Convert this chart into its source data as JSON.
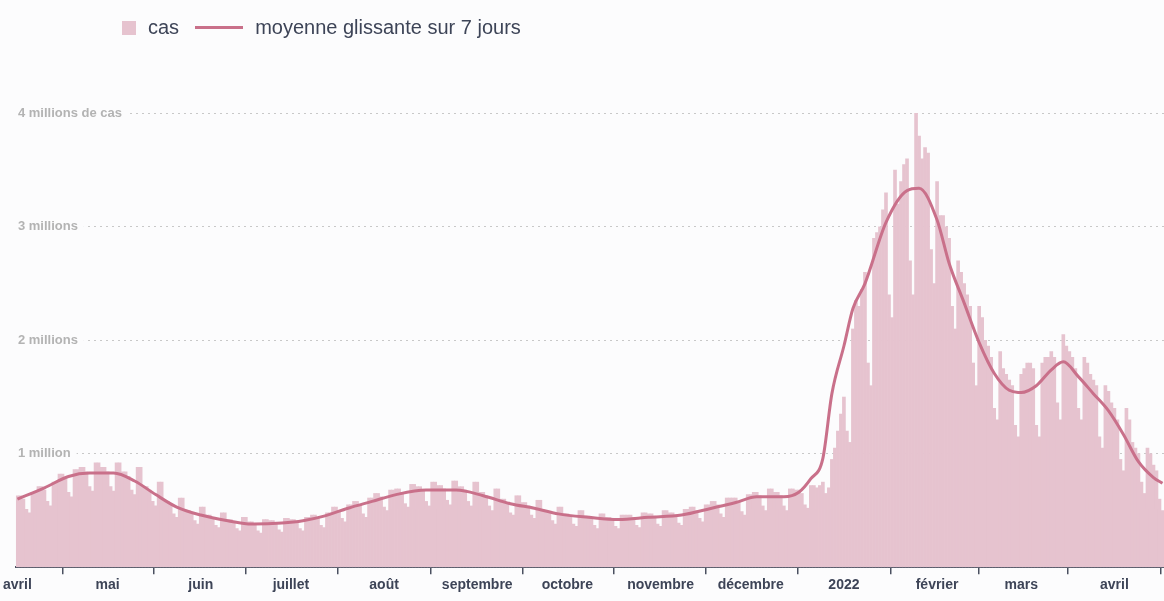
{
  "chart_data": {
    "type": "bar",
    "legend": "top left",
    "grid": "y",
    "marker": "none",
    "xlim": [
      "2021-03-31T12:00",
      "2022-04-17T12:00"
    ],
    "xticks": [
      {
        "value": "2021-04-01",
        "label": "avril"
      },
      {
        "value": "2021-05-01",
        "label": "mai"
      },
      {
        "value": "2021-06-01",
        "label": "juin"
      },
      {
        "value": "2021-07-01",
        "label": "juillet"
      },
      {
        "value": "2021-08-01",
        "label": "août"
      },
      {
        "value": "2021-09-01",
        "label": "septembre"
      },
      {
        "value": "2021-10-01",
        "label": "octobre"
      },
      {
        "value": "2021-11-01",
        "label": "novembre"
      },
      {
        "value": "2021-12-01",
        "label": "décembre"
      },
      {
        "value": "2022-01-01",
        "label": "2022"
      },
      {
        "value": "2022-02-01",
        "label": "février"
      },
      {
        "value": "2022-03-01",
        "label": "mars"
      },
      {
        "value": "2022-04-01",
        "label": "avril"
      }
    ],
    "ylim": [
      0,
      5
    ],
    "yticks": [
      {
        "value": 1,
        "label": "1 million"
      },
      {
        "value": 2,
        "label": "2 millions"
      },
      {
        "value": 3,
        "label": "3 millions"
      },
      {
        "value": 4,
        "label": "4 millions de cas"
      }
    ],
    "x": [
      "2021-04-01",
      "2021-04-02",
      "2021-04-03",
      "2021-04-04",
      "2021-04-05",
      "2021-04-06",
      "2021-04-07",
      "2021-04-08",
      "2021-04-09",
      "2021-04-10",
      "2021-04-11",
      "2021-04-12",
      "2021-04-13",
      "2021-04-14",
      "2021-04-15",
      "2021-04-16",
      "2021-04-17",
      "2021-04-18",
      "2021-04-19",
      "2021-04-20",
      "2021-04-21",
      "2021-04-22",
      "2021-04-23",
      "2021-04-24",
      "2021-04-25",
      "2021-04-26",
      "2021-04-27",
      "2021-04-28",
      "2021-04-29",
      "2021-04-30",
      "2021-05-01",
      "2021-05-02",
      "2021-05-03",
      "2021-05-04",
      "2021-05-05",
      "2021-05-06",
      "2021-05-07",
      "2021-05-08",
      "2021-05-09",
      "2021-05-10",
      "2021-05-11",
      "2021-05-12",
      "2021-05-13",
      "2021-05-14",
      "2021-05-15",
      "2021-05-16",
      "2021-05-17",
      "2021-05-18",
      "2021-05-19",
      "2021-05-20",
      "2021-05-21",
      "2021-05-22",
      "2021-05-23",
      "2021-05-24",
      "2021-05-25",
      "2021-05-26",
      "2021-05-27",
      "2021-05-28",
      "2021-05-29",
      "2021-05-30",
      "2021-05-31",
      "2021-06-01",
      "2021-06-02",
      "2021-06-03",
      "2021-06-04",
      "2021-06-05",
      "2021-06-06",
      "2021-06-07",
      "2021-06-08",
      "2021-06-09",
      "2021-06-10",
      "2021-06-11",
      "2021-06-12",
      "2021-06-13",
      "2021-06-14",
      "2021-06-15",
      "2021-06-16",
      "2021-06-17",
      "2021-06-18",
      "2021-06-19",
      "2021-06-20",
      "2021-06-21",
      "2021-06-22",
      "2021-06-23",
      "2021-06-24",
      "2021-06-25",
      "2021-06-26",
      "2021-06-27",
      "2021-06-28",
      "2021-06-29",
      "2021-06-30",
      "2021-07-01",
      "2021-07-02",
      "2021-07-03",
      "2021-07-04",
      "2021-07-05",
      "2021-07-06",
      "2021-07-07",
      "2021-07-08",
      "2021-07-09",
      "2021-07-10",
      "2021-07-11",
      "2021-07-12",
      "2021-07-13",
      "2021-07-14",
      "2021-07-15",
      "2021-07-16",
      "2021-07-17",
      "2021-07-18",
      "2021-07-19",
      "2021-07-20",
      "2021-07-21",
      "2021-07-22",
      "2021-07-23",
      "2021-07-24",
      "2021-07-25",
      "2021-07-26",
      "2021-07-27",
      "2021-07-28",
      "2021-07-29",
      "2021-07-30",
      "2021-07-31",
      "2021-08-01",
      "2021-08-02",
      "2021-08-03",
      "2021-08-04",
      "2021-08-05",
      "2021-08-06",
      "2021-08-07",
      "2021-08-08",
      "2021-08-09",
      "2021-08-10",
      "2021-08-11",
      "2021-08-12",
      "2021-08-13",
      "2021-08-14",
      "2021-08-15",
      "2021-08-16",
      "2021-08-17",
      "2021-08-18",
      "2021-08-19",
      "2021-08-20",
      "2021-08-21",
      "2021-08-22",
      "2021-08-23",
      "2021-08-24",
      "2021-08-25",
      "2021-08-26",
      "2021-08-27",
      "2021-08-28",
      "2021-08-29",
      "2021-08-30",
      "2021-08-31",
      "2021-09-01",
      "2021-09-02",
      "2021-09-03",
      "2021-09-04",
      "2021-09-05",
      "2021-09-06",
      "2021-09-07",
      "2021-09-08",
      "2021-09-09",
      "2021-09-10",
      "2021-09-11",
      "2021-09-12",
      "2021-09-13",
      "2021-09-14",
      "2021-09-15",
      "2021-09-16",
      "2021-09-17",
      "2021-09-18",
      "2021-09-19",
      "2021-09-20",
      "2021-09-21",
      "2021-09-22",
      "2021-09-23",
      "2021-09-24",
      "2021-09-25",
      "2021-09-26",
      "2021-09-27",
      "2021-09-28",
      "2021-09-29",
      "2021-09-30",
      "2021-10-01",
      "2021-10-02",
      "2021-10-03",
      "2021-10-04",
      "2021-10-05",
      "2021-10-06",
      "2021-10-07",
      "2021-10-08",
      "2021-10-09",
      "2021-10-10",
      "2021-10-11",
      "2021-10-12",
      "2021-10-13",
      "2021-10-14",
      "2021-10-15",
      "2021-10-16",
      "2021-10-17",
      "2021-10-18",
      "2021-10-19",
      "2021-10-20",
      "2021-10-21",
      "2021-10-22",
      "2021-10-23",
      "2021-10-24",
      "2021-10-25",
      "2021-10-26",
      "2021-10-27",
      "2021-10-28",
      "2021-10-29",
      "2021-10-30",
      "2021-10-31",
      "2021-11-01",
      "2021-11-02",
      "2021-11-03",
      "2021-11-04",
      "2021-11-05",
      "2021-11-06",
      "2021-11-07",
      "2021-11-08",
      "2021-11-09",
      "2021-11-10",
      "2021-11-11",
      "2021-11-12",
      "2021-11-13",
      "2021-11-14",
      "2021-11-15",
      "2021-11-16",
      "2021-11-17",
      "2021-11-18",
      "2021-11-19",
      "2021-11-20",
      "2021-11-21",
      "2021-11-22",
      "2021-11-23",
      "2021-11-24",
      "2021-11-25",
      "2021-11-26",
      "2021-11-27",
      "2021-11-28",
      "2021-11-29",
      "2021-11-30",
      "2021-12-01",
      "2021-12-02",
      "2021-12-03",
      "2021-12-04",
      "2021-12-05",
      "2021-12-06",
      "2021-12-07",
      "2021-12-08",
      "2021-12-09",
      "2021-12-10",
      "2021-12-11",
      "2021-12-12",
      "2021-12-13",
      "2021-12-14",
      "2021-12-15",
      "2021-12-16",
      "2021-12-17",
      "2021-12-18",
      "2021-12-19",
      "2021-12-20",
      "2021-12-21",
      "2021-12-22",
      "2021-12-23",
      "2021-12-24",
      "2021-12-25",
      "2021-12-26",
      "2021-12-27",
      "2021-12-28",
      "2021-12-29",
      "2021-12-30",
      "2021-12-31",
      "2022-01-01",
      "2022-01-02",
      "2022-01-03",
      "2022-01-04",
      "2022-01-05",
      "2022-01-06",
      "2022-01-07",
      "2022-01-08",
      "2022-01-09",
      "2022-01-10",
      "2022-01-11",
      "2022-01-12",
      "2022-01-13",
      "2022-01-14",
      "2022-01-15",
      "2022-01-16",
      "2022-01-17",
      "2022-01-18",
      "2022-01-19",
      "2022-01-20",
      "2022-01-21",
      "2022-01-22",
      "2022-01-23",
      "2022-01-24",
      "2022-01-25",
      "2022-01-26",
      "2022-01-27",
      "2022-01-28",
      "2022-01-29",
      "2022-01-30",
      "2022-01-31",
      "2022-02-01",
      "2022-02-02",
      "2022-02-03",
      "2022-02-04",
      "2022-02-05",
      "2022-02-06",
      "2022-02-07",
      "2022-02-08",
      "2022-02-09",
      "2022-02-10",
      "2022-02-11",
      "2022-02-12",
      "2022-02-13",
      "2022-02-14",
      "2022-02-15",
      "2022-02-16",
      "2022-02-17",
      "2022-02-18",
      "2022-02-19",
      "2022-02-20",
      "2022-02-21",
      "2022-02-22",
      "2022-02-23",
      "2022-02-24",
      "2022-02-25",
      "2022-02-26",
      "2022-02-27",
      "2022-02-28",
      "2022-03-01",
      "2022-03-02",
      "2022-03-03",
      "2022-03-04",
      "2022-03-05",
      "2022-03-06",
      "2022-03-07",
      "2022-03-08",
      "2022-03-09",
      "2022-03-10",
      "2022-03-11",
      "2022-03-12",
      "2022-03-13",
      "2022-03-14",
      "2022-03-15",
      "2022-03-16",
      "2022-03-17",
      "2022-03-18",
      "2022-03-19",
      "2022-03-20",
      "2022-03-21",
      "2022-03-22",
      "2022-03-23",
      "2022-03-24",
      "2022-03-25",
      "2022-03-26",
      "2022-03-27",
      "2022-03-28",
      "2022-03-29",
      "2022-03-30",
      "2022-03-31",
      "2022-04-01",
      "2022-04-02",
      "2022-04-03",
      "2022-04-04",
      "2022-04-05",
      "2022-04-06",
      "2022-04-07",
      "2022-04-08",
      "2022-04-09",
      "2022-04-10",
      "2022-04-11",
      "2022-04-12",
      "2022-04-13",
      "2022-04-14",
      "2022-04-15",
      "2022-04-16",
      "2022-04-17"
    ],
    "series": [
      {
        "name": "cas",
        "color": "#e6c3cf",
        "values": [
          0.63,
          0.63,
          0.6,
          0.51,
          0.48,
          0.66,
          0.66,
          0.71,
          0.71,
          0.68,
          0.58,
          0.54,
          0.75,
          0.75,
          0.82,
          0.82,
          0.78,
          0.66,
          0.62,
          0.86,
          0.86,
          0.88,
          0.88,
          0.84,
          0.71,
          0.67,
          0.92,
          0.92,
          0.88,
          0.88,
          0.84,
          0.71,
          0.67,
          0.92,
          0.92,
          0.84,
          0.84,
          0.8,
          0.68,
          0.64,
          0.88,
          0.88,
          0.71,
          0.71,
          0.68,
          0.58,
          0.54,
          0.75,
          0.75,
          0.58,
          0.58,
          0.55,
          0.47,
          0.44,
          0.61,
          0.61,
          0.5,
          0.5,
          0.48,
          0.41,
          0.38,
          0.53,
          0.53,
          0.46,
          0.46,
          0.44,
          0.37,
          0.35,
          0.48,
          0.48,
          0.42,
          0.42,
          0.4,
          0.34,
          0.32,
          0.44,
          0.44,
          0.4,
          0.4,
          0.38,
          0.32,
          0.3,
          0.42,
          0.42,
          0.41,
          0.41,
          0.39,
          0.33,
          0.31,
          0.43,
          0.43,
          0.42,
          0.42,
          0.4,
          0.34,
          0.32,
          0.44,
          0.44,
          0.46,
          0.46,
          0.44,
          0.37,
          0.35,
          0.48,
          0.48,
          0.53,
          0.53,
          0.5,
          0.43,
          0.4,
          0.55,
          0.55,
          0.58,
          0.58,
          0.55,
          0.47,
          0.44,
          0.61,
          0.61,
          0.65,
          0.65,
          0.62,
          0.53,
          0.5,
          0.68,
          0.68,
          0.69,
          0.69,
          0.66,
          0.56,
          0.53,
          0.73,
          0.73,
          0.71,
          0.71,
          0.68,
          0.58,
          0.54,
          0.75,
          0.75,
          0.72,
          0.72,
          0.69,
          0.59,
          0.55,
          0.76,
          0.76,
          0.71,
          0.71,
          0.68,
          0.58,
          0.54,
          0.75,
          0.75,
          0.66,
          0.66,
          0.63,
          0.54,
          0.5,
          0.69,
          0.69,
          0.6,
          0.6,
          0.57,
          0.48,
          0.46,
          0.63,
          0.63,
          0.57,
          0.57,
          0.54,
          0.46,
          0.43,
          0.59,
          0.59,
          0.5,
          0.5,
          0.48,
          0.41,
          0.38,
          0.53,
          0.53,
          0.47,
          0.47,
          0.45,
          0.38,
          0.36,
          0.5,
          0.5,
          0.45,
          0.45,
          0.43,
          0.37,
          0.34,
          0.47,
          0.47,
          0.44,
          0.44,
          0.42,
          0.36,
          0.34,
          0.46,
          0.46,
          0.46,
          0.46,
          0.44,
          0.37,
          0.35,
          0.48,
          0.48,
          0.47,
          0.47,
          0.45,
          0.38,
          0.36,
          0.5,
          0.5,
          0.48,
          0.48,
          0.46,
          0.39,
          0.37,
          0.51,
          0.51,
          0.53,
          0.53,
          0.5,
          0.43,
          0.4,
          0.55,
          0.55,
          0.58,
          0.58,
          0.55,
          0.47,
          0.44,
          0.61,
          0.61,
          0.61,
          0.61,
          0.58,
          0.49,
          0.46,
          0.64,
          0.64,
          0.66,
          0.66,
          0.63,
          0.54,
          0.5,
          0.69,
          0.69,
          0.66,
          0.66,
          0.63,
          0.54,
          0.5,
          0.69,
          0.69,
          0.68,
          0.68,
          0.65,
          0.55,
          0.52,
          0.72,
          0.72,
          0.7,
          0.72,
          0.75,
          0.65,
          0.7,
          0.95,
          1.05,
          1.2,
          1.35,
          1.5,
          1.2,
          1.1,
          2.1,
          2.35,
          2.3,
          2.45,
          2.6,
          1.8,
          1.6,
          2.9,
          2.95,
          3.0,
          3.15,
          3.3,
          2.4,
          2.2,
          3.5,
          3.2,
          3.4,
          3.55,
          3.6,
          2.7,
          2.4,
          4.0,
          3.8,
          3.6,
          3.7,
          3.65,
          2.8,
          2.5,
          3.4,
          3.1,
          3.1,
          3.0,
          2.9,
          2.3,
          2.1,
          2.7,
          2.6,
          2.5,
          2.4,
          2.3,
          1.8,
          1.6,
          2.3,
          2.2,
          2.0,
          1.95,
          1.85,
          1.4,
          1.3,
          1.9,
          1.75,
          1.7,
          1.65,
          1.6,
          1.25,
          1.15,
          1.7,
          1.75,
          1.8,
          1.8,
          1.75,
          1.25,
          1.15,
          1.8,
          1.85,
          1.85,
          1.9,
          1.85,
          1.45,
          1.3,
          2.05,
          1.95,
          1.9,
          1.85,
          1.75,
          1.4,
          1.3,
          1.85,
          1.8,
          1.7,
          1.65,
          1.6,
          1.15,
          1.05,
          1.6,
          1.55,
          1.45,
          1.4,
          1.3,
          0.95,
          0.85,
          1.4,
          1.3,
          1.1,
          1.05,
          1.0,
          0.75,
          0.65,
          1.05,
          1.0,
          0.9,
          0.85,
          0.6,
          0.5
        ]
      },
      {
        "name": "moyenne glissante sur 7 jours",
        "type": "line",
        "color": "#c9708a",
        "x": [
          "2021-04-01",
          "2021-04-10",
          "2021-04-18",
          "2021-04-25",
          "2021-05-03",
          "2021-05-10",
          "2021-05-17",
          "2021-05-24",
          "2021-06-01",
          "2021-06-10",
          "2021-06-18",
          "2021-06-28",
          "2021-07-05",
          "2021-07-12",
          "2021-07-20",
          "2021-07-28",
          "2021-08-05",
          "2021-08-15",
          "2021-08-25",
          "2021-09-03",
          "2021-09-12",
          "2021-09-20",
          "2021-09-28",
          "2021-10-08",
          "2021-10-18",
          "2021-10-28",
          "2021-11-08",
          "2021-11-18",
          "2021-11-26",
          "2021-12-03",
          "2021-12-12",
          "2021-12-17",
          "2021-12-21",
          "2021-12-25",
          "2021-12-28",
          "2022-01-01",
          "2022-01-04",
          "2022-01-08",
          "2022-01-15",
          "2022-01-22",
          "2022-01-26",
          "2022-02-01",
          "2022-02-05",
          "2022-02-10",
          "2022-02-15",
          "2022-02-20",
          "2022-02-25",
          "2022-03-01",
          "2022-03-06",
          "2022-03-11",
          "2022-03-15",
          "2022-03-20",
          "2022-03-25",
          "2022-03-30",
          "2022-04-04",
          "2022-04-09",
          "2022-04-14",
          "2022-04-17"
        ],
        "values": [
          0.6,
          0.7,
          0.8,
          0.83,
          0.83,
          0.76,
          0.64,
          0.53,
          0.46,
          0.41,
          0.38,
          0.39,
          0.41,
          0.45,
          0.52,
          0.58,
          0.64,
          0.68,
          0.68,
          0.63,
          0.56,
          0.52,
          0.47,
          0.44,
          0.42,
          0.44,
          0.46,
          0.52,
          0.57,
          0.62,
          0.62,
          0.66,
          0.78,
          0.96,
          1.53,
          1.95,
          2.28,
          2.5,
          3.04,
          3.32,
          3.34,
          3.06,
          2.68,
          2.33,
          1.98,
          1.71,
          1.56,
          1.54,
          1.6,
          1.74,
          1.81,
          1.68,
          1.53,
          1.38,
          1.17,
          0.93,
          0.79,
          0.74
        ]
      }
    ]
  }
}
